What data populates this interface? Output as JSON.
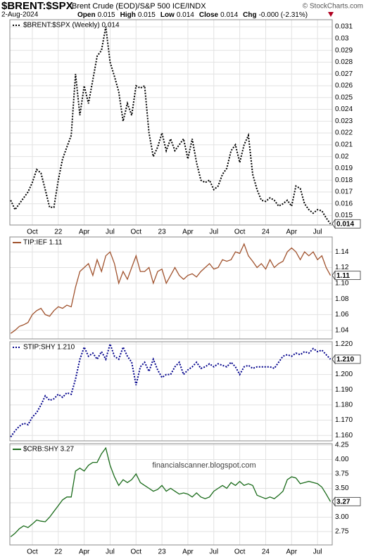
{
  "header": {
    "symbol": "$BRENT:$SPX",
    "description": "Brent Crude (EOD)/S&P 500 ICE/INDX",
    "credit": "© StockCharts.com",
    "date": "2-Aug-2024",
    "quote": [
      {
        "label": "Open",
        "value": "0.015"
      },
      {
        "label": "High",
        "value": "0.015"
      },
      {
        "label": "Low",
        "value": "0.014"
      },
      {
        "label": "Close",
        "value": "0.014"
      },
      {
        "label": "Chg",
        "value": "-0.000 (-2.31%)"
      }
    ]
  },
  "chart_data": [
    {
      "type": "line",
      "badge": "0.014",
      "x": [
        -5.5,
        -5,
        -4.5,
        -4,
        -3.5,
        -3,
        -2.5,
        -2,
        -1.5,
        -1,
        -0.5,
        0,
        0.5,
        1,
        1.5,
        2,
        2.5,
        3,
        3.5,
        4,
        4.5,
        5,
        5.5,
        6,
        6.5,
        7,
        7.5,
        8,
        8.5,
        9,
        9.5,
        10,
        10.5,
        11,
        11.5,
        12,
        12.5,
        13,
        13.5,
        14,
        14.5,
        15,
        15.5,
        16,
        16.5,
        17,
        17.5,
        18,
        18.5,
        19,
        19.5,
        20,
        20.5,
        21,
        21.5,
        22,
        22.5,
        23,
        23.5,
        24,
        24.5,
        25,
        25.5,
        26,
        26.5,
        27,
        27.5,
        28,
        28.5,
        29,
        29.5,
        30,
        30.5,
        31,
        31.5
      ],
      "series": [
        {
          "name": "$BRENT:$SPX (Weekly) 0.014",
          "color": "#000000",
          "line_style": "dotted",
          "values": [
            0.0163,
            0.0155,
            0.016,
            0.0165,
            0.017,
            0.0178,
            0.0189,
            0.0186,
            0.0172,
            0.0157,
            0.0157,
            0.018,
            0.0198,
            0.0208,
            0.0218,
            0.027,
            0.0235,
            0.026,
            0.0245,
            0.0265,
            0.0285,
            0.029,
            0.031,
            0.028,
            0.0268,
            0.0255,
            0.023,
            0.0245,
            0.0235,
            0.026,
            0.0258,
            0.026,
            0.022,
            0.02,
            0.0208,
            0.022,
            0.0205,
            0.0215,
            0.0205,
            0.021,
            0.0215,
            0.0198,
            0.0215,
            0.0195,
            0.018,
            0.0178,
            0.018,
            0.0172,
            0.0175,
            0.0185,
            0.019,
            0.0205,
            0.021,
            0.0195,
            0.021,
            0.0218,
            0.0185,
            0.0172,
            0.0163,
            0.0162,
            0.0165,
            0.0163,
            0.0158,
            0.016,
            0.0163,
            0.0158,
            0.0175,
            0.0173,
            0.016,
            0.0155,
            0.0152,
            0.0155,
            0.0154,
            0.0148,
            0.0143
          ]
        }
      ],
      "xlim": [
        -5.6,
        31.7
      ],
      "xticks": [
        {
          "value": -3,
          "label": "Oct"
        },
        {
          "value": 0,
          "label": "22"
        },
        {
          "value": 3,
          "label": "Apr"
        },
        {
          "value": 6,
          "label": "Jul"
        },
        {
          "value": 9,
          "label": "Oct"
        },
        {
          "value": 12,
          "label": "23"
        },
        {
          "value": 15,
          "label": "Apr"
        },
        {
          "value": 18,
          "label": "Jul"
        },
        {
          "value": 21,
          "label": "Oct"
        },
        {
          "value": 24,
          "label": "24"
        },
        {
          "value": 27,
          "label": "Apr"
        },
        {
          "value": 30,
          "label": "Jul"
        }
      ],
      "ylim": [
        0.0142,
        0.0316
      ],
      "yticks": [
        0.015,
        0.016,
        0.017,
        0.018,
        0.019,
        0.02,
        0.021,
        0.022,
        0.023,
        0.024,
        0.025,
        0.026,
        0.027,
        0.028,
        0.029,
        0.03,
        0.031
      ],
      "grid": true
    },
    {
      "type": "line",
      "badge": "1.11",
      "x": [
        -5.5,
        -5,
        -4.5,
        -4,
        -3.5,
        -3,
        -2.5,
        -2,
        -1.5,
        -1,
        -0.5,
        0,
        0.5,
        1,
        1.5,
        2,
        2.5,
        3,
        3.5,
        4,
        4.5,
        5,
        5.5,
        6,
        6.5,
        7,
        7.5,
        8,
        8.5,
        9,
        9.5,
        10,
        10.5,
        11,
        11.5,
        12,
        12.5,
        13,
        13.5,
        14,
        14.5,
        15,
        15.5,
        16,
        16.5,
        17,
        17.5,
        18,
        18.5,
        19,
        19.5,
        20,
        20.5,
        21,
        21.5,
        22,
        22.5,
        23,
        23.5,
        24,
        24.5,
        25,
        25.5,
        26,
        26.5,
        27,
        27.5,
        28,
        28.5,
        29,
        29.5,
        30,
        30.5,
        31,
        31.5
      ],
      "series": [
        {
          "name": "TIP:IEF 1.11",
          "color": "#a0522d",
          "line_style": "solid",
          "values": [
            1.036,
            1.04,
            1.045,
            1.047,
            1.05,
            1.06,
            1.065,
            1.068,
            1.06,
            1.058,
            1.065,
            1.07,
            1.068,
            1.072,
            1.07,
            1.095,
            1.115,
            1.12,
            1.125,
            1.11,
            1.13,
            1.115,
            1.135,
            1.14,
            1.125,
            1.1,
            1.115,
            1.105,
            1.12,
            1.135,
            1.115,
            1.115,
            1.12,
            1.1,
            1.115,
            1.118,
            1.1,
            1.11,
            1.12,
            1.11,
            1.105,
            1.11,
            1.112,
            1.108,
            1.115,
            1.12,
            1.125,
            1.118,
            1.12,
            1.13,
            1.128,
            1.13,
            1.14,
            1.138,
            1.15,
            1.135,
            1.128,
            1.12,
            1.125,
            1.118,
            1.13,
            1.12,
            1.125,
            1.128,
            1.14,
            1.145,
            1.14,
            1.13,
            1.14,
            1.135,
            1.14,
            1.13,
            1.135,
            1.12,
            1.11
          ]
        }
      ],
      "xlim": [
        -5.6,
        31.7
      ],
      "ylim": [
        1.029,
        1.159
      ],
      "yticks": [
        1.04,
        1.06,
        1.08,
        {
          "value": 1.1,
          "label": "1.10"
        },
        1.12,
        1.14
      ],
      "grid": true
    },
    {
      "type": "line",
      "badge": "1.210",
      "x": [
        -5.5,
        -5,
        -4.5,
        -4,
        -3.5,
        -3,
        -2.5,
        -2,
        -1.5,
        -1,
        -0.5,
        0,
        0.5,
        1,
        1.5,
        2,
        2.5,
        3,
        3.5,
        4,
        4.5,
        5,
        5.5,
        6,
        6.5,
        7,
        7.5,
        8,
        8.5,
        9,
        9.5,
        10,
        10.5,
        11,
        11.5,
        12,
        12.5,
        13,
        13.5,
        14,
        14.5,
        15,
        15.5,
        16,
        16.5,
        17,
        17.5,
        18,
        18.5,
        19,
        19.5,
        20,
        20.5,
        21,
        21.5,
        22,
        22.5,
        23,
        23.5,
        24,
        24.5,
        25,
        25.5,
        26,
        26.5,
        27,
        27.5,
        28,
        28.5,
        29,
        29.5,
        30,
        30.5,
        31,
        31.5
      ],
      "series": [
        {
          "name": "STIP:SHY 1.210",
          "color": "#00008b",
          "line_style": "dotted",
          "values": [
            1.159,
            1.163,
            1.166,
            1.168,
            1.167,
            1.172,
            1.175,
            1.18,
            1.186,
            1.183,
            1.184,
            1.187,
            1.185,
            1.188,
            1.187,
            1.197,
            1.21,
            1.218,
            1.212,
            1.214,
            1.21,
            1.215,
            1.21,
            1.22,
            1.212,
            1.21,
            1.218,
            1.212,
            1.208,
            1.193,
            1.205,
            1.208,
            1.202,
            1.21,
            1.203,
            1.198,
            1.2,
            1.2,
            1.205,
            1.208,
            1.2,
            1.203,
            1.205,
            1.208,
            1.204,
            1.205,
            1.207,
            1.205,
            1.207,
            1.206,
            1.205,
            1.208,
            1.205,
            1.2,
            1.205,
            1.206,
            1.204,
            1.205,
            1.205,
            1.205,
            1.205,
            1.204,
            1.208,
            1.212,
            1.213,
            1.212,
            1.214,
            1.213,
            1.215,
            1.214,
            1.217,
            1.215,
            1.216,
            1.213,
            1.21
          ]
        }
      ],
      "xlim": [
        -5.6,
        31.7
      ],
      "ylim": [
        1.1564,
        1.2215
      ],
      "yticks": [
        {
          "value": 1.16,
          "label": "1.160"
        },
        {
          "value": 1.17,
          "label": "1.170"
        },
        {
          "value": 1.18,
          "label": "1.180"
        },
        {
          "value": 1.19,
          "label": "1.190"
        },
        {
          "value": 1.2,
          "label": "1.200"
        },
        {
          "value": 1.21,
          "label": "1.210"
        },
        {
          "value": 1.22,
          "label": "1.220"
        }
      ],
      "grid": true
    },
    {
      "type": "line",
      "badge": "3.27",
      "watermark": "financialscanner.blogspot.com",
      "x": [
        -5.5,
        -5,
        -4.5,
        -4,
        -3.5,
        -3,
        -2.5,
        -2,
        -1.5,
        -1,
        -0.5,
        0,
        0.5,
        1,
        1.5,
        2,
        2.5,
        3,
        3.5,
        4,
        4.5,
        5,
        5.5,
        6,
        6.5,
        7,
        7.5,
        8,
        8.5,
        9,
        9.5,
        10,
        10.5,
        11,
        11.5,
        12,
        12.5,
        13,
        13.5,
        14,
        14.5,
        15,
        15.5,
        16,
        16.5,
        17,
        17.5,
        18,
        18.5,
        19,
        19.5,
        20,
        20.5,
        21,
        21.5,
        22,
        22.5,
        23,
        23.5,
        24,
        24.5,
        25,
        25.5,
        26,
        26.5,
        27,
        27.5,
        28,
        28.5,
        29,
        29.5,
        30,
        30.5,
        31,
        31.5
      ],
      "series": [
        {
          "name": "$CRB:SHY 3.27",
          "color": "#1a6b1a",
          "line_style": "solid",
          "values": [
            2.66,
            2.72,
            2.8,
            2.85,
            2.82,
            2.88,
            2.95,
            2.93,
            2.92,
            3.0,
            3.1,
            3.2,
            3.3,
            3.35,
            3.35,
            3.8,
            3.85,
            3.8,
            3.9,
            3.95,
            3.95,
            4.1,
            4.2,
            3.9,
            3.7,
            3.55,
            3.65,
            3.6,
            3.65,
            3.75,
            3.6,
            3.55,
            3.5,
            3.45,
            3.48,
            3.55,
            3.45,
            3.5,
            3.45,
            3.4,
            3.42,
            3.4,
            3.35,
            3.42,
            3.35,
            3.32,
            3.35,
            3.45,
            3.5,
            3.55,
            3.5,
            3.6,
            3.55,
            3.62,
            3.55,
            3.58,
            3.55,
            3.38,
            3.35,
            3.32,
            3.35,
            3.32,
            3.38,
            3.45,
            3.65,
            3.7,
            3.68,
            3.58,
            3.6,
            3.62,
            3.6,
            3.58,
            3.52,
            3.4,
            3.27
          ]
        }
      ],
      "xlim": [
        -5.6,
        31.7
      ],
      "xticks": [
        {
          "value": -3,
          "label": "Oct"
        },
        {
          "value": 0,
          "label": "22"
        },
        {
          "value": 3,
          "label": "Apr"
        },
        {
          "value": 6,
          "label": "Jul"
        },
        {
          "value": 9,
          "label": "Oct"
        },
        {
          "value": 12,
          "label": "23"
        },
        {
          "value": 15,
          "label": "Apr"
        },
        {
          "value": 18,
          "label": "Jul"
        },
        {
          "value": 21,
          "label": "Oct"
        },
        {
          "value": 24,
          "label": "24"
        },
        {
          "value": 27,
          "label": "Apr"
        },
        {
          "value": 30,
          "label": "Jul"
        }
      ],
      "ylim": [
        2.518,
        4.274
      ],
      "yticks": [
        2.75,
        {
          "value": 3,
          "label": "3.00"
        },
        3.25,
        {
          "value": 3.5,
          "label": "3.50"
        },
        3.75,
        {
          "value": 4,
          "label": "4.00"
        },
        4.25
      ],
      "grid": true
    }
  ]
}
